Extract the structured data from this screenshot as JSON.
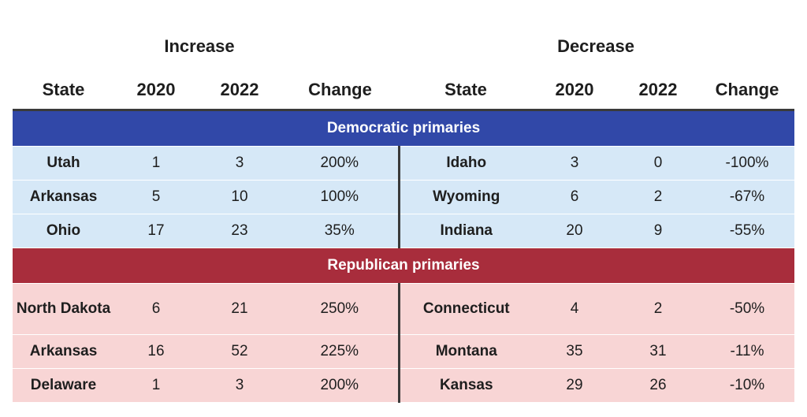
{
  "groups": {
    "increase": "Increase",
    "decrease": "Decrease"
  },
  "columns": [
    "State",
    "2020",
    "2022",
    "Change",
    "State",
    "2020",
    "2022",
    "Change"
  ],
  "sections": [
    {
      "title": "Democratic primaries",
      "color": "#3148a8",
      "row_bg": "#d6e8f7",
      "rows": [
        {
          "inc": [
            "Utah",
            "1",
            "3",
            "200%"
          ],
          "dec": [
            "Idaho",
            "3",
            "0",
            "-100%"
          ]
        },
        {
          "inc": [
            "Arkansas",
            "5",
            "10",
            "100%"
          ],
          "dec": [
            "Wyoming",
            "6",
            "2",
            "-67%"
          ]
        },
        {
          "inc": [
            "Ohio",
            "17",
            "23",
            "35%"
          ],
          "dec": [
            "Indiana",
            "20",
            "9",
            "-55%"
          ]
        }
      ]
    },
    {
      "title": "Republican primaries",
      "color": "#a82d3c",
      "row_bg": "#f8d5d5",
      "rows": [
        {
          "inc": [
            "North Dakota",
            "6",
            "21",
            "250%"
          ],
          "dec": [
            "Connecticut",
            "4",
            "2",
            "-50%"
          ]
        },
        {
          "inc": [
            "Arkansas",
            "16",
            "52",
            "225%"
          ],
          "dec": [
            "Montana",
            "35",
            "31",
            "-11%"
          ]
        },
        {
          "inc": [
            "Delaware",
            "1",
            "3",
            "200%"
          ],
          "dec": [
            "Kansas",
            "29",
            "26",
            "-10%"
          ]
        }
      ]
    }
  ]
}
